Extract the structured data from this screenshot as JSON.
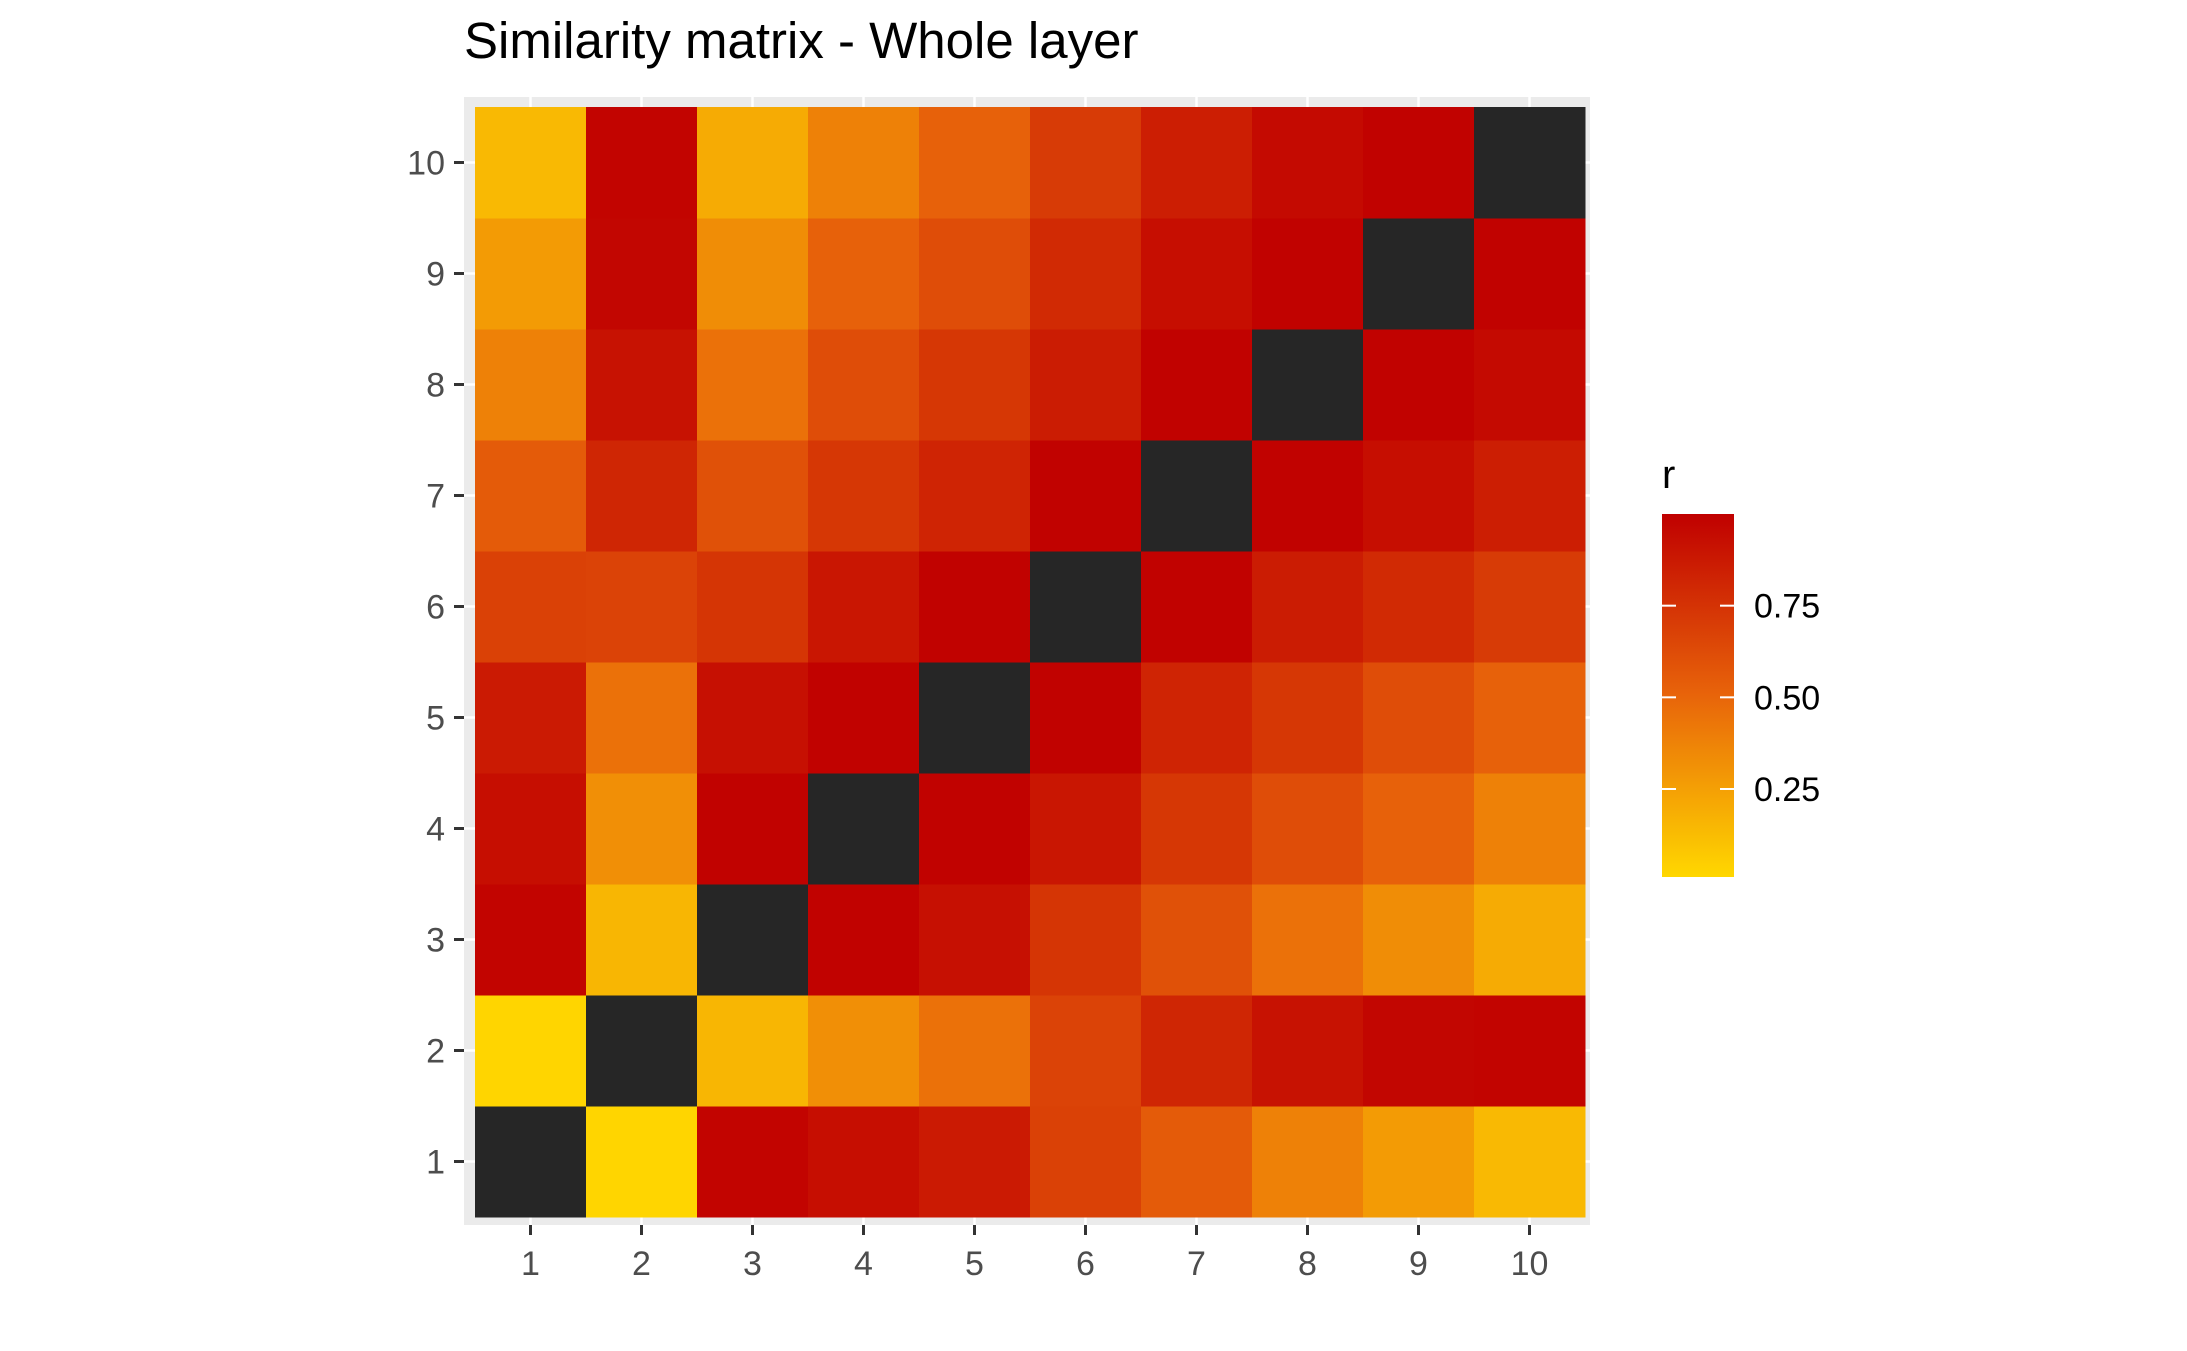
{
  "chart_data": {
    "type": "heatmap",
    "title": "Similarity matrix - Whole layer",
    "xlabel": "",
    "ylabel": "",
    "x_categories": [
      "1",
      "2",
      "3",
      "4",
      "5",
      "6",
      "7",
      "8",
      "9",
      "10"
    ],
    "y_categories": [
      "1",
      "2",
      "3",
      "4",
      "5",
      "6",
      "7",
      "8",
      "9",
      "10"
    ],
    "diagonal": "NA",
    "na_color": "#262626",
    "values": [
      [
        null,
        0.02,
        0.98,
        0.93,
        0.87,
        0.68,
        0.55,
        0.38,
        0.27,
        0.14
      ],
      [
        0.02,
        null,
        0.15,
        0.32,
        0.45,
        0.67,
        0.81,
        0.91,
        0.97,
        0.98
      ],
      [
        0.98,
        0.15,
        null,
        0.99,
        0.92,
        0.74,
        0.6,
        0.45,
        0.33,
        0.2
      ],
      [
        0.93,
        0.32,
        0.99,
        null,
        0.99,
        0.89,
        0.73,
        0.62,
        0.52,
        0.38
      ],
      [
        0.87,
        0.45,
        0.92,
        0.99,
        null,
        0.99,
        0.82,
        0.73,
        0.62,
        0.52
      ],
      [
        0.68,
        0.67,
        0.74,
        0.89,
        0.99,
        null,
        0.99,
        0.86,
        0.79,
        0.71
      ],
      [
        0.55,
        0.81,
        0.6,
        0.73,
        0.82,
        0.99,
        null,
        0.99,
        0.93,
        0.85
      ],
      [
        0.38,
        0.91,
        0.45,
        0.62,
        0.73,
        0.86,
        0.99,
        null,
        0.99,
        0.95
      ],
      [
        0.27,
        0.97,
        0.33,
        0.52,
        0.62,
        0.79,
        0.93,
        0.99,
        null,
        0.99
      ],
      [
        0.14,
        0.98,
        0.2,
        0.38,
        0.52,
        0.71,
        0.85,
        0.95,
        0.99,
        null
      ]
    ],
    "color_scale": {
      "low": "#FFD700",
      "mid": "#E8640A",
      "high": "#C00000",
      "domain": [
        0.01,
        1.0
      ]
    },
    "legend": {
      "title": "r",
      "ticks": [
        0.25,
        0.5,
        0.75
      ],
      "tick_labels": [
        "0.25",
        "0.50",
        "0.75"
      ],
      "position": "right"
    },
    "grid": true
  }
}
